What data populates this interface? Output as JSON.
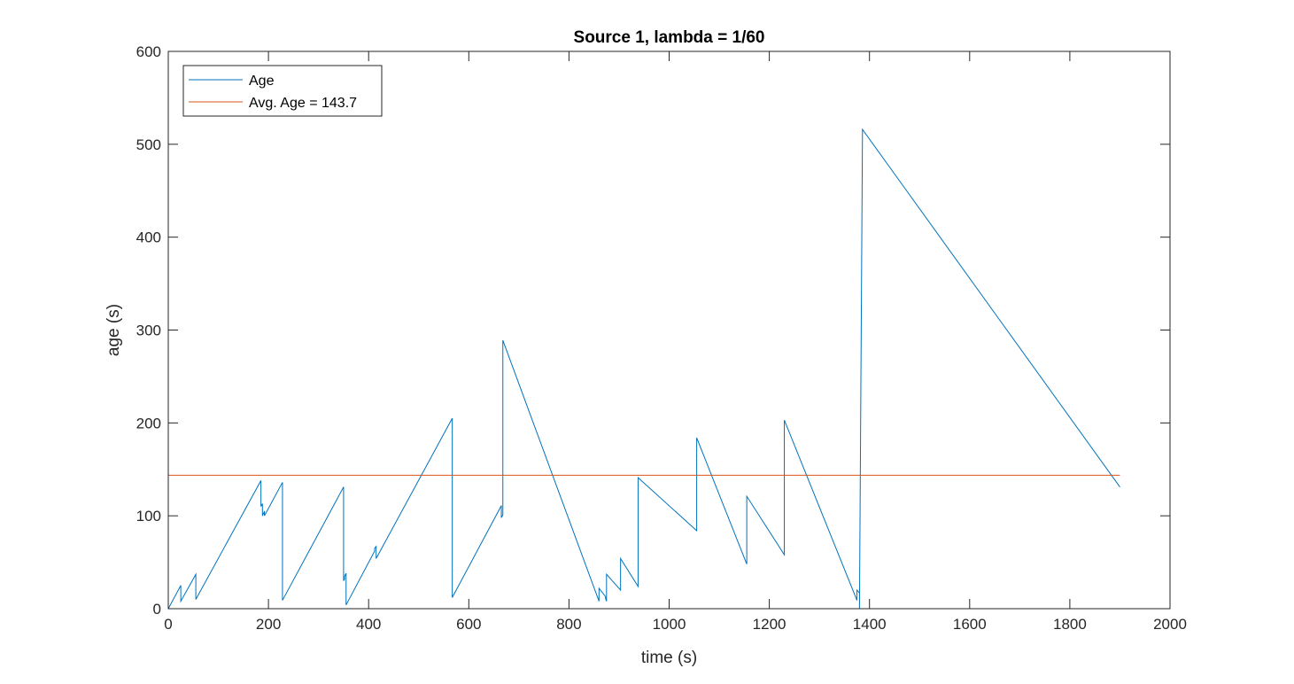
{
  "chart_data": {
    "type": "line",
    "title": "Source 1, lambda = 1/60",
    "xlabel": "time (s)",
    "ylabel": "age (s)",
    "xlim": [
      0,
      2000
    ],
    "ylim": [
      0,
      600
    ],
    "xticks": [
      0,
      200,
      400,
      600,
      800,
      1000,
      1200,
      1400,
      1600,
      1800,
      2000
    ],
    "yticks": [
      0,
      100,
      200,
      300,
      400,
      500,
      600
    ],
    "xtick_labels": [
      "0",
      "200",
      "400",
      "600",
      "800",
      "1000",
      "1200",
      "1400",
      "1600",
      "1800",
      "2000"
    ],
    "ytick_labels": [
      "0",
      "100",
      "200",
      "300",
      "400",
      "500",
      "600"
    ],
    "grid": false,
    "legend_position": "top-left",
    "series": [
      {
        "name": "Age",
        "color": "#0072BD",
        "x": [
          0,
          25,
          25,
          55,
          55,
          185,
          185,
          188,
          188,
          192,
          192,
          228,
          228,
          350,
          350,
          352,
          352,
          355,
          355,
          412,
          412,
          415,
          415,
          567,
          567,
          665,
          665,
          668,
          668,
          860,
          860,
          873,
          873,
          875,
          875,
          903,
          903,
          938,
          938,
          1055,
          1055,
          1155,
          1155,
          1230,
          1230,
          1375,
          1375,
          1380,
          1380,
          1386,
          1386,
          1900,
          1900
        ],
        "y": [
          0,
          25,
          8,
          37,
          10,
          138,
          110,
          113,
          100,
          105,
          100,
          136,
          9,
          131,
          30,
          32,
          35,
          38,
          4,
          62,
          65,
          67,
          54,
          205,
          12,
          111,
          98,
          101,
          289,
          8,
          22,
          13,
          11,
          8,
          37,
          20,
          54,
          24,
          141,
          84,
          184,
          48,
          121,
          58,
          203,
          9,
          20,
          17,
          0,
          514,
          516,
          131,
          131
        ]
      },
      {
        "name": "Avg. Age = 143.7",
        "color": "#D95319",
        "x": [
          0,
          1900
        ],
        "y": [
          143.7,
          143.7
        ]
      }
    ]
  }
}
